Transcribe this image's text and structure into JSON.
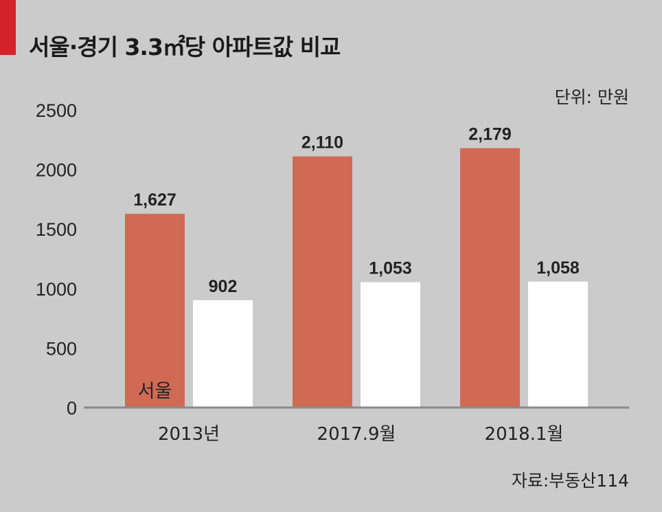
{
  "title": "서울·경기 3.3㎡당 아파트값 비교",
  "unit_label": "단위: 만원",
  "source": "자료:부동산114",
  "colors": {
    "accent": "#d3222a",
    "seoul": "#d06a55",
    "gyeonggi": "#ffffff",
    "background": "#cbcbcb"
  },
  "chart_data": {
    "type": "bar",
    "title": "서울·경기 3.3㎡당 아파트값 비교",
    "categories": [
      "2013년",
      "2017.9월",
      "2018.1월"
    ],
    "series": [
      {
        "name": "서울",
        "values": [
          1627,
          2110,
          2179
        ],
        "labels": [
          "1,627",
          "2,110",
          "2,179"
        ],
        "color": "#d06a55"
      },
      {
        "values": [
          902,
          1053,
          1058
        ],
        "labels": [
          "902",
          "1,053",
          "1,058"
        ],
        "color": "#ffffff"
      }
    ],
    "ylim": [
      0,
      2500
    ],
    "yticks": [
      0,
      500,
      1000,
      1500,
      2000,
      2500
    ],
    "grid": false,
    "xlabel": "",
    "ylabel": ""
  }
}
